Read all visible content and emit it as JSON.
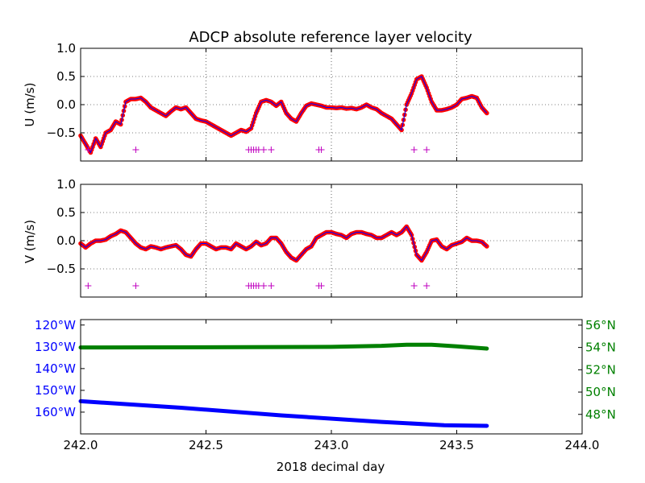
{
  "chart_data": {
    "title": "ADCP absolute reference layer velocity",
    "xlabel": "2018 decimal day",
    "xlim": [
      242.0,
      244.0
    ],
    "xticks": [
      "242.0",
      "242.5",
      "243.0",
      "243.5",
      "244.0"
    ],
    "grid": true,
    "panels": [
      {
        "id": "u",
        "type": "scatter+line",
        "ylabel": "U (m/s)",
        "ylim": [
          -1.0,
          1.0
        ],
        "yticks": [
          "1.0",
          "0.5",
          "0.0",
          "−0.5"
        ],
        "ytick_values": [
          1.0,
          0.5,
          0.0,
          -0.5
        ],
        "colors": {
          "points": "#ff0000",
          "line": "#0000ff",
          "markers": "#bf00bf"
        },
        "series": [
          {
            "x": [
              242.0,
              242.02,
              242.04,
              242.06,
              242.08,
              242.1,
              242.12,
              242.14,
              242.16,
              242.18,
              242.2,
              242.22,
              242.24,
              242.26,
              242.28,
              242.3,
              242.32,
              242.34,
              242.36,
              242.38,
              242.4,
              242.42,
              242.44,
              242.46,
              242.48,
              242.5,
              242.52,
              242.54,
              242.56,
              242.58,
              242.6,
              242.62,
              242.64,
              242.66,
              242.68,
              242.7,
              242.72,
              242.74,
              242.76,
              242.78,
              242.8,
              242.82,
              242.84,
              242.86,
              242.88,
              242.9,
              242.92,
              242.94,
              242.96,
              242.98,
              243.0,
              243.02,
              243.04,
              243.06,
              243.08,
              243.1,
              243.12,
              243.14,
              243.16,
              243.18,
              243.2,
              243.22,
              243.24,
              243.26,
              243.28,
              243.3,
              243.32,
              243.34,
              243.36,
              243.38,
              243.4,
              243.42,
              243.44,
              243.46,
              243.48,
              243.5,
              243.52,
              243.54,
              243.56,
              243.58,
              243.6,
              243.62
            ],
            "y": [
              -0.55,
              -0.7,
              -0.85,
              -0.6,
              -0.75,
              -0.5,
              -0.45,
              -0.3,
              -0.35,
              0.05,
              0.1,
              0.1,
              0.12,
              0.05,
              -0.05,
              -0.1,
              -0.15,
              -0.2,
              -0.12,
              -0.05,
              -0.08,
              -0.05,
              -0.15,
              -0.25,
              -0.28,
              -0.3,
              -0.35,
              -0.4,
              -0.45,
              -0.5,
              -0.55,
              -0.5,
              -0.45,
              -0.48,
              -0.42,
              -0.15,
              0.05,
              0.08,
              0.05,
              -0.02,
              0.05,
              -0.15,
              -0.25,
              -0.3,
              -0.15,
              -0.02,
              0.02,
              0.0,
              -0.02,
              -0.05,
              -0.05,
              -0.06,
              -0.05,
              -0.07,
              -0.06,
              -0.08,
              -0.05,
              0.0,
              -0.05,
              -0.08,
              -0.15,
              -0.2,
              -0.25,
              -0.35,
              -0.45,
              0.0,
              0.2,
              0.45,
              0.5,
              0.3,
              0.05,
              -0.1,
              -0.1,
              -0.08,
              -0.05,
              0.0,
              0.1,
              0.12,
              0.15,
              0.12,
              -0.05,
              -0.15
            ]
          }
        ],
        "marker_x": [
          242.03,
          242.22,
          242.67,
          242.68,
          242.69,
          242.7,
          242.71,
          242.73,
          242.76,
          242.95,
          242.96,
          243.33,
          243.38
        ],
        "marker_y": -0.8
      },
      {
        "id": "v",
        "type": "scatter+line",
        "ylabel": "V (m/s)",
        "ylim": [
          -1.0,
          1.0
        ],
        "yticks": [
          "1.0",
          "0.5",
          "0.0",
          "−0.5"
        ],
        "ytick_values": [
          1.0,
          0.5,
          0.0,
          -0.5
        ],
        "colors": {
          "points": "#ff0000",
          "line": "#0000ff",
          "markers": "#bf00bf"
        },
        "series": [
          {
            "x": [
              242.0,
              242.02,
              242.04,
              242.06,
              242.08,
              242.1,
              242.12,
              242.14,
              242.16,
              242.18,
              242.2,
              242.22,
              242.24,
              242.26,
              242.28,
              242.3,
              242.32,
              242.34,
              242.36,
              242.38,
              242.4,
              242.42,
              242.44,
              242.46,
              242.48,
              242.5,
              242.52,
              242.54,
              242.56,
              242.58,
              242.6,
              242.62,
              242.64,
              242.66,
              242.68,
              242.7,
              242.72,
              242.74,
              242.76,
              242.78,
              242.8,
              242.82,
              242.84,
              242.86,
              242.88,
              242.9,
              242.92,
              242.94,
              242.96,
              242.98,
              243.0,
              243.02,
              243.04,
              243.06,
              243.08,
              243.1,
              243.12,
              243.14,
              243.16,
              243.18,
              243.2,
              243.22,
              243.24,
              243.26,
              243.28,
              243.3,
              243.32,
              243.34,
              243.36,
              243.38,
              243.4,
              243.42,
              243.44,
              243.46,
              243.48,
              243.5,
              243.52,
              243.54,
              243.56,
              243.58,
              243.6,
              243.62
            ],
            "y": [
              -0.05,
              -0.12,
              -0.05,
              0.0,
              0.0,
              0.02,
              0.08,
              0.12,
              0.18,
              0.15,
              0.05,
              -0.05,
              -0.12,
              -0.15,
              -0.1,
              -0.12,
              -0.15,
              -0.12,
              -0.1,
              -0.08,
              -0.15,
              -0.25,
              -0.28,
              -0.15,
              -0.05,
              -0.05,
              -0.1,
              -0.15,
              -0.12,
              -0.12,
              -0.15,
              -0.05,
              -0.1,
              -0.15,
              -0.1,
              -0.02,
              -0.08,
              -0.05,
              0.05,
              0.05,
              -0.05,
              -0.2,
              -0.3,
              -0.35,
              -0.25,
              -0.15,
              -0.1,
              0.05,
              0.1,
              0.15,
              0.15,
              0.12,
              0.1,
              0.05,
              0.12,
              0.15,
              0.15,
              0.12,
              0.1,
              0.05,
              0.05,
              0.1,
              0.15,
              0.1,
              0.15,
              0.25,
              0.1,
              -0.25,
              -0.35,
              -0.2,
              0.0,
              0.02,
              -0.1,
              -0.15,
              -0.08,
              -0.05,
              -0.02,
              0.05,
              0.0,
              0.0,
              -0.02,
              -0.1
            ]
          }
        ],
        "marker_x": [
          242.03,
          242.22,
          242.67,
          242.68,
          242.69,
          242.7,
          242.71,
          242.73,
          242.76,
          242.95,
          242.96,
          243.33,
          243.38
        ],
        "marker_y": -0.8
      },
      {
        "id": "pos",
        "type": "line",
        "left_ylim": [
          -170,
          -117.5
        ],
        "left_yticks": [
          "120°W",
          "130°W",
          "140°W",
          "150°W",
          "160°W"
        ],
        "left_ytick_values": [
          -120,
          -130,
          -140,
          -150,
          -160
        ],
        "left_color": "#0000ff",
        "right_ylim": [
          46.25,
          56.5
        ],
        "right_yticks": [
          "56°N",
          "54°N",
          "52°N",
          "50°N",
          "48°N"
        ],
        "right_ytick_values": [
          56,
          54,
          52,
          50,
          48
        ],
        "right_color": "#008000",
        "series": [
          {
            "name": "longitude",
            "axis": "left",
            "x": [
              242.0,
              242.4,
              242.8,
              243.2,
              243.45,
              243.62
            ],
            "y": [
              -155.0,
              -158.0,
              -161.5,
              -164.5,
              -166.0,
              -166.3
            ]
          },
          {
            "name": "latitude",
            "axis": "right",
            "x": [
              242.0,
              242.5,
              243.0,
              243.2,
              243.3,
              243.4,
              243.5,
              243.62
            ],
            "y": [
              54.0,
              54.02,
              54.05,
              54.15,
              54.25,
              54.25,
              54.1,
              53.9
            ]
          }
        ]
      }
    ]
  }
}
